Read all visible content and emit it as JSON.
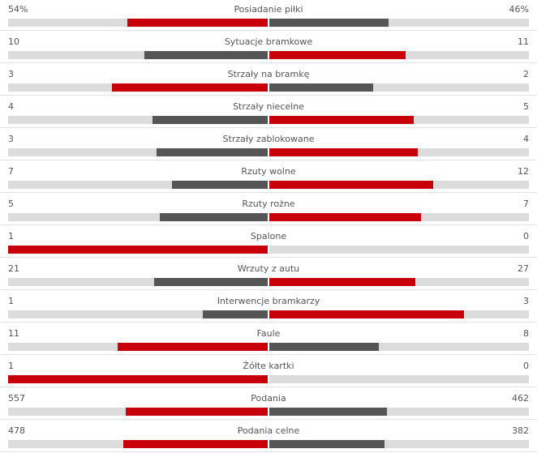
{
  "colors": {
    "leader": "#c8000a",
    "trailer": "#555555",
    "track": "#dcdcdc"
  },
  "stats": [
    {
      "label": "Posiadanie piłki",
      "home": "54%",
      "away": "46%",
      "home_value": 54,
      "away_value": 46
    },
    {
      "label": "Sytuacje bramkowe",
      "home": "10",
      "away": "11",
      "home_value": 10,
      "away_value": 11
    },
    {
      "label": "Strzały na bramkę",
      "home": "3",
      "away": "2",
      "home_value": 3,
      "away_value": 2
    },
    {
      "label": "Strzały niecelne",
      "home": "4",
      "away": "5",
      "home_value": 4,
      "away_value": 5
    },
    {
      "label": "Strzały zablokowane",
      "home": "3",
      "away": "4",
      "home_value": 3,
      "away_value": 4
    },
    {
      "label": "Rzuty wolne",
      "home": "7",
      "away": "12",
      "home_value": 7,
      "away_value": 12
    },
    {
      "label": "Rzuty rożne",
      "home": "5",
      "away": "7",
      "home_value": 5,
      "away_value": 7
    },
    {
      "label": "Spalone",
      "home": "1",
      "away": "0",
      "home_value": 1,
      "away_value": 0
    },
    {
      "label": "Wrzuty z autu",
      "home": "21",
      "away": "27",
      "home_value": 21,
      "away_value": 27
    },
    {
      "label": "Interwencje bramkarzy",
      "home": "1",
      "away": "3",
      "home_value": 1,
      "away_value": 3
    },
    {
      "label": "Faule",
      "home": "11",
      "away": "8",
      "home_value": 11,
      "away_value": 8
    },
    {
      "label": "Żółte kartki",
      "home": "1",
      "away": "0",
      "home_value": 1,
      "away_value": 0
    },
    {
      "label": "Podania",
      "home": "557",
      "away": "462",
      "home_value": 557,
      "away_value": 462
    },
    {
      "label": "Podania celne",
      "home": "478",
      "away": "382",
      "home_value": 478,
      "away_value": 382
    }
  ]
}
